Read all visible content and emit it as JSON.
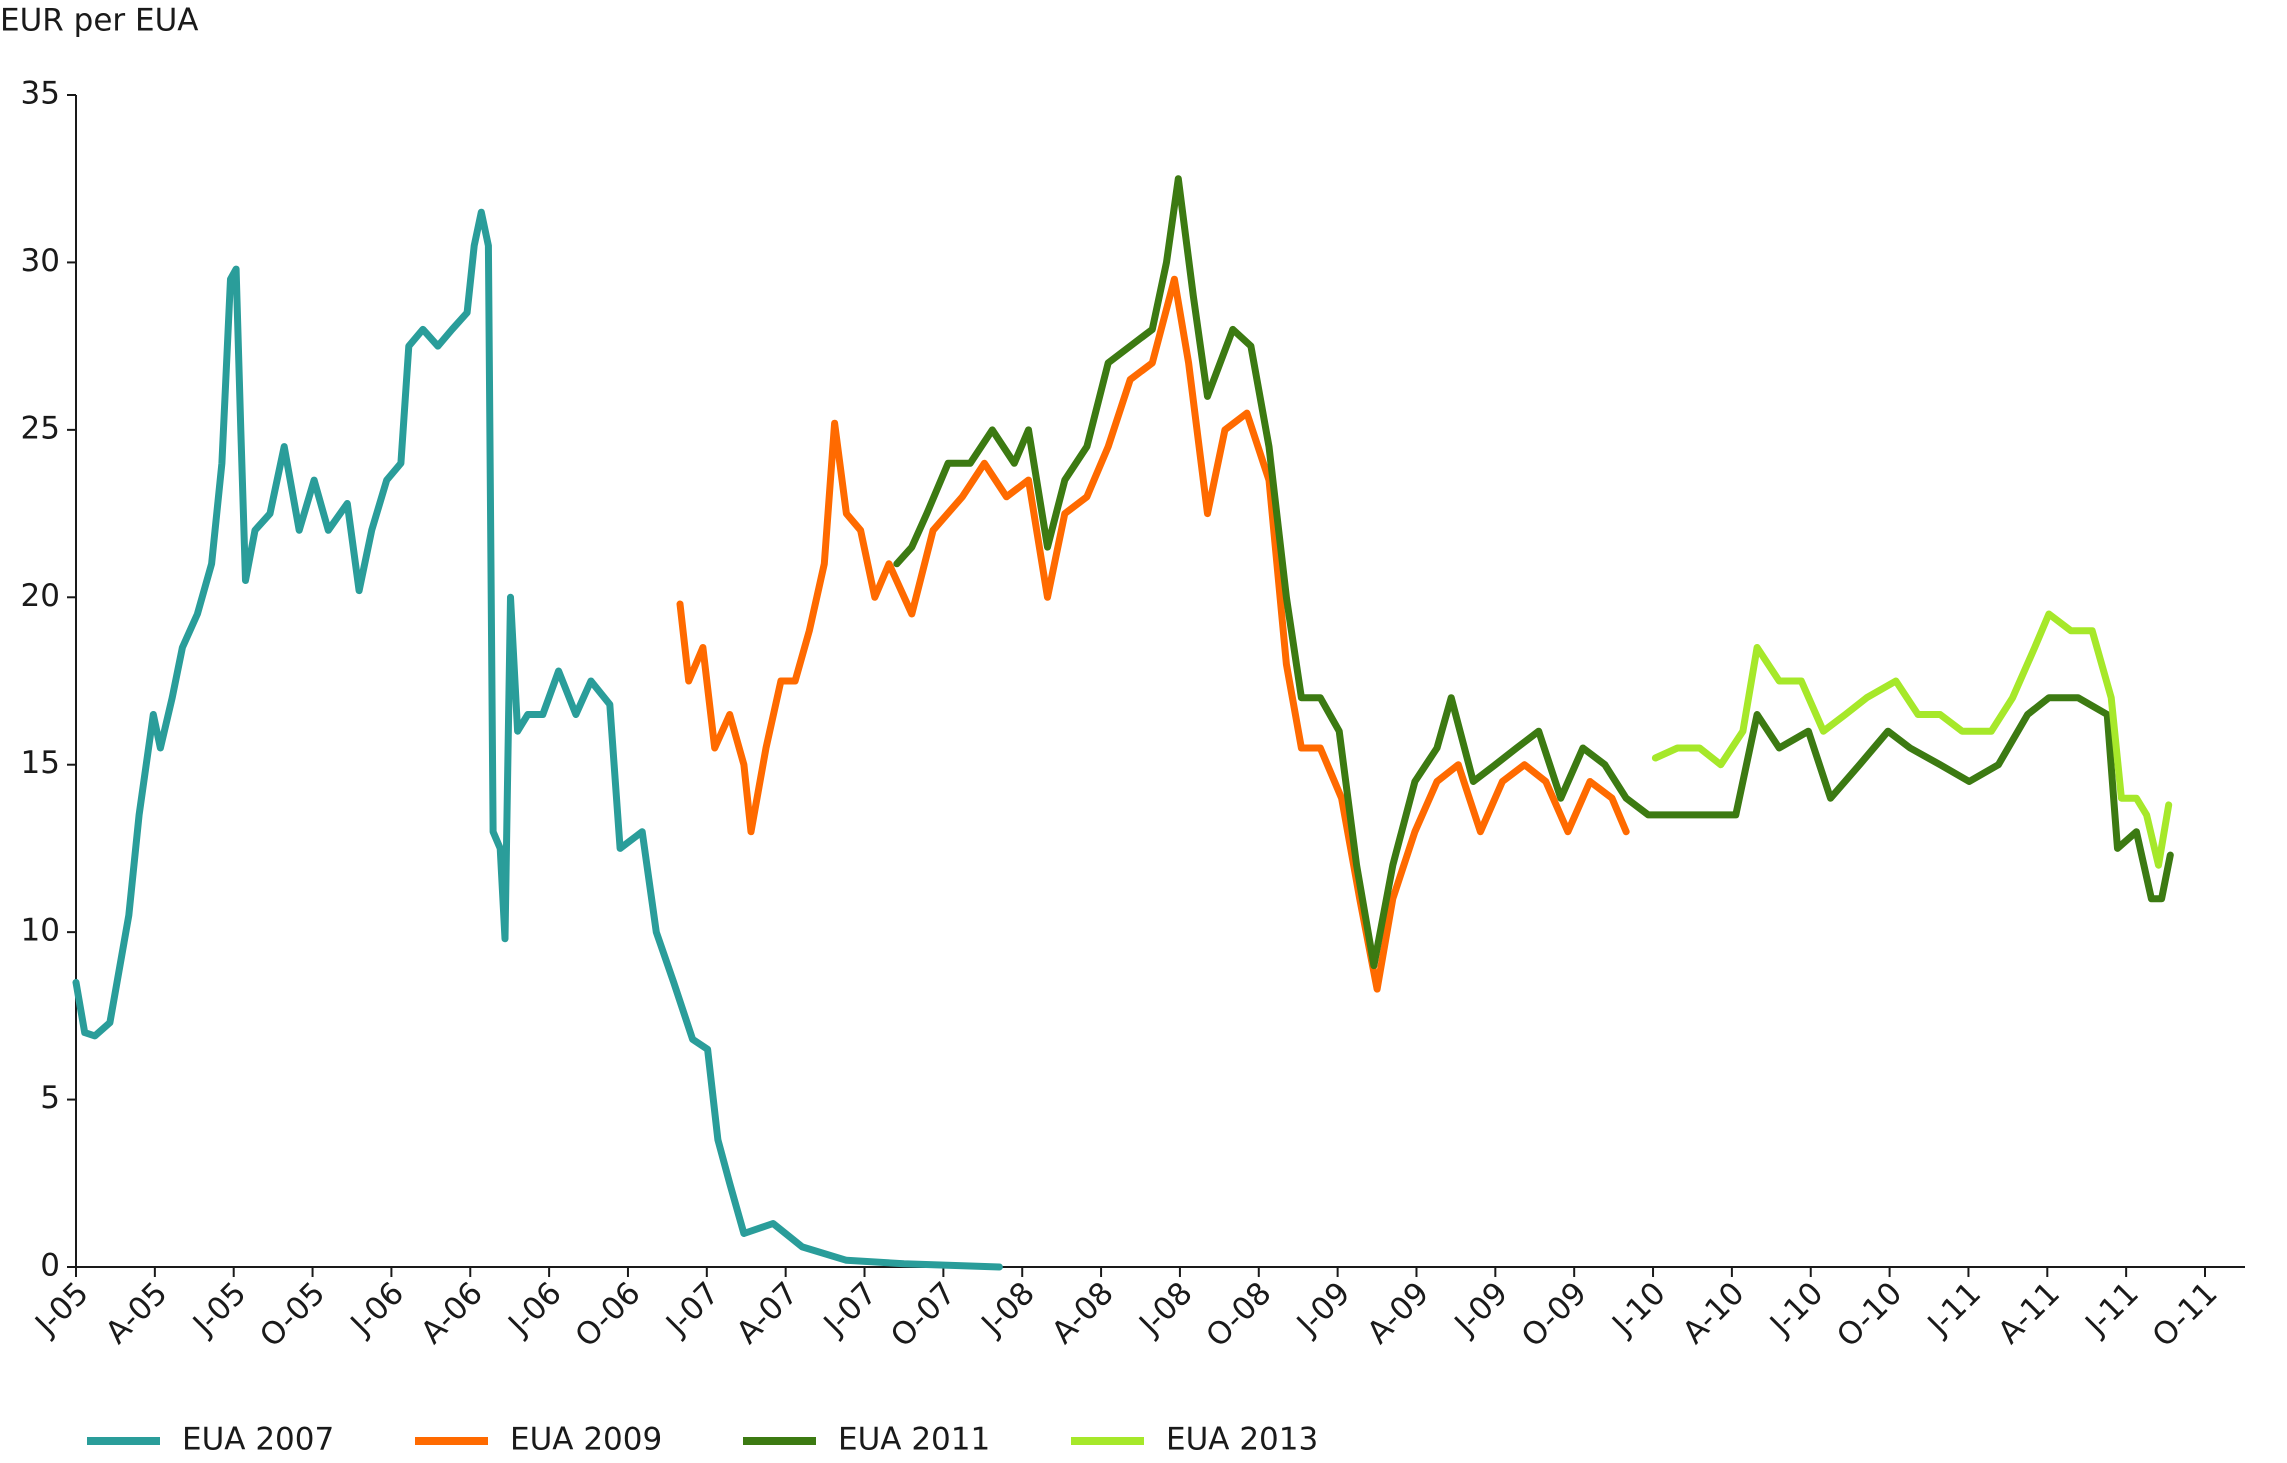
{
  "chart_data": {
    "type": "line",
    "y_label": "EUR per EUA",
    "ylim": [
      0,
      35
    ],
    "yticks": [
      0,
      5,
      10,
      15,
      20,
      25,
      30,
      35
    ],
    "xlim": [
      0,
      27
    ],
    "xticks": [
      {
        "value": 0,
        "label": "J-05"
      },
      {
        "value": 1,
        "label": "A-05"
      },
      {
        "value": 2,
        "label": "J-05"
      },
      {
        "value": 3,
        "label": "O-05"
      },
      {
        "value": 4,
        "label": "J-06"
      },
      {
        "value": 5,
        "label": "A-06"
      },
      {
        "value": 6,
        "label": "J-06"
      },
      {
        "value": 7,
        "label": "O-06"
      },
      {
        "value": 8,
        "label": "J-07"
      },
      {
        "value": 9,
        "label": "A-07"
      },
      {
        "value": 10,
        "label": "J-07"
      },
      {
        "value": 11,
        "label": "O-07"
      },
      {
        "value": 12,
        "label": "J-08"
      },
      {
        "value": 13,
        "label": "A-08"
      },
      {
        "value": 14,
        "label": "J-08"
      },
      {
        "value": 15,
        "label": "O-08"
      },
      {
        "value": 16,
        "label": "J-09"
      },
      {
        "value": 17,
        "label": "A-09"
      },
      {
        "value": 18,
        "label": "J-09"
      },
      {
        "value": 19,
        "label": "O-09"
      },
      {
        "value": 20,
        "label": "J-10"
      },
      {
        "value": 21,
        "label": "A-10"
      },
      {
        "value": 22,
        "label": "J-10"
      },
      {
        "value": 23,
        "label": "O-10"
      },
      {
        "value": 24,
        "label": "J-11"
      },
      {
        "value": 25,
        "label": "A-11"
      },
      {
        "value": 26,
        "label": "J-11"
      },
      {
        "value": 27,
        "label": "O-11"
      }
    ],
    "legend_position": "bottom-left",
    "series": [
      {
        "name": "EUA 2007",
        "color": "#2a9d9a",
        "x": [
          0,
          0.11,
          0.24,
          0.43,
          0.52,
          0.67,
          0.8,
          0.98,
          1.07,
          1.22,
          1.35,
          1.54,
          1.72,
          1.85,
          1.96,
          2.03,
          2.09,
          2.15,
          2.27,
          2.46,
          2.64,
          2.83,
          3.02,
          3.2,
          3.44,
          3.59,
          3.75,
          3.94,
          4.12,
          4.22,
          4.4,
          4.59,
          4.77,
          4.96,
          5.05,
          5.14,
          5.23,
          5.29,
          5.38,
          5.44,
          5.51,
          5.6,
          5.73,
          5.92,
          6.12,
          6.34,
          6.53,
          6.77,
          6.9,
          7.18,
          7.36,
          7.58,
          7.82,
          8.01,
          8.14,
          8.29,
          8.47,
          8.84,
          9.21,
          9.77,
          10.5,
          11.71
        ],
        "values": [
          8.5,
          7.0,
          6.9,
          7.3,
          8.5,
          10.5,
          13.5,
          16.5,
          15.5,
          17,
          18.5,
          19.5,
          21,
          24,
          29.5,
          29.8,
          25,
          20.5,
          22,
          22.5,
          24.5,
          22,
          23.5,
          22,
          22.8,
          20.2,
          22,
          23.5,
          24,
          27.5,
          28,
          27.5,
          28,
          28.5,
          30.5,
          31.5,
          30.5,
          13,
          12.5,
          9.8,
          20,
          16,
          16.5,
          16.5,
          17.8,
          16.5,
          17.5,
          16.8,
          12.5,
          13,
          10,
          8.5,
          6.8,
          6.5,
          3.8,
          2.5,
          1,
          1.3,
          0.6,
          0.2,
          0.1,
          0
        ]
      },
      {
        "name": "EUA 2009",
        "color": "#ff6a00",
        "x": [
          7.66,
          7.77,
          7.95,
          8.1,
          8.29,
          8.47,
          8.56,
          8.75,
          8.94,
          9.12,
          9.3,
          9.49,
          9.62,
          9.77,
          9.95,
          10.13,
          10.31,
          10.6,
          10.87,
          11.24,
          11.52,
          11.8,
          12.08,
          12.32,
          12.54,
          12.82,
          13.09,
          13.37,
          13.65,
          13.93,
          14.11,
          14.35,
          14.57,
          14.85,
          15.13,
          15.35,
          15.54,
          15.78,
          16.05,
          16.28,
          16.5,
          16.7,
          16.98,
          17.26,
          17.53,
          17.81,
          18.09,
          18.37,
          18.64,
          18.92,
          19.2,
          19.48,
          19.66
        ],
        "values": [
          19.8,
          17.5,
          18.5,
          15.5,
          16.5,
          15,
          13,
          15.5,
          17.5,
          17.5,
          19,
          21,
          25.2,
          22.5,
          22,
          20,
          21,
          19.5,
          22,
          23,
          24,
          23,
          23.5,
          20,
          22.5,
          23,
          24.5,
          26.5,
          27,
          29.5,
          27,
          22.5,
          25,
          25.5,
          23.5,
          18,
          15.5,
          15.5,
          14,
          11,
          8.3,
          11,
          13,
          14.5,
          15,
          13,
          14.5,
          15,
          14.5,
          13,
          14.5,
          14,
          13
        ]
      },
      {
        "name": "EUA 2011",
        "color": "#3c7a12",
        "x": [
          10.41,
          10.6,
          10.79,
          11.06,
          11.34,
          11.62,
          11.9,
          12.08,
          12.32,
          12.54,
          12.82,
          13.09,
          13.37,
          13.65,
          13.83,
          13.98,
          14.17,
          14.35,
          14.67,
          14.9,
          15.13,
          15.35,
          15.54,
          15.78,
          16.02,
          16.24,
          16.46,
          16.7,
          16.98,
          17.26,
          17.44,
          17.72,
          18,
          18.27,
          18.55,
          18.83,
          19.11,
          19.39,
          19.66,
          19.94,
          20.31,
          20.68,
          21.05,
          21.32,
          21.6,
          21.97,
          22.25,
          22.62,
          22.98,
          23.26,
          23.64,
          24.01,
          24.38,
          24.75,
          25.02,
          25.39,
          25.76,
          25.89,
          26.13,
          26.32,
          26.45,
          26.56
        ],
        "values": [
          21,
          21.5,
          22.5,
          24,
          24,
          25,
          24,
          25,
          21.5,
          23.5,
          24.5,
          27,
          27.5,
          28,
          30,
          32.5,
          29,
          26,
          28,
          27.5,
          24.5,
          20,
          17,
          17,
          16,
          12,
          9,
          12,
          14.5,
          15.5,
          17,
          14.5,
          15,
          15.5,
          16,
          14,
          15.5,
          15,
          14,
          13.5,
          13.5,
          13.5,
          13.5,
          16.5,
          15.5,
          16,
          14,
          15,
          16,
          15.5,
          15,
          14.5,
          15,
          16.5,
          17,
          17,
          16.5,
          12.5,
          13,
          11,
          11,
          12.3
        ]
      },
      {
        "name": "EUA 2013",
        "color": "#a6e82a",
        "x": [
          20.03,
          20.31,
          20.59,
          20.86,
          21.14,
          21.32,
          21.6,
          21.88,
          22.16,
          22.44,
          22.71,
          23.08,
          23.36,
          23.64,
          23.92,
          24.29,
          24.56,
          24.84,
          25.02,
          25.3,
          25.57,
          25.81,
          25.94,
          26.13,
          26.26,
          26.41,
          26.54
        ],
        "values": [
          15.2,
          15.5,
          15.5,
          15,
          16,
          18.5,
          17.5,
          17.5,
          16,
          16.5,
          17,
          17.5,
          16.5,
          16.5,
          16,
          16,
          17,
          18.5,
          19.5,
          19,
          19,
          17,
          14,
          14,
          13.5,
          12,
          13.8
        ]
      }
    ]
  }
}
